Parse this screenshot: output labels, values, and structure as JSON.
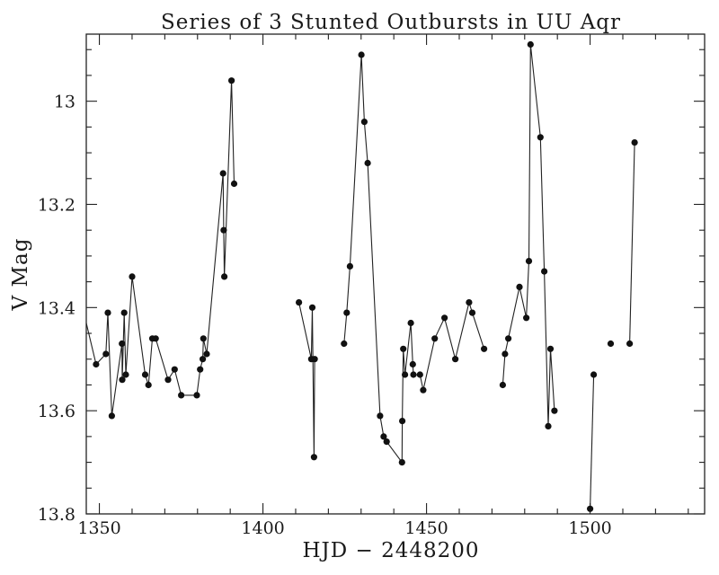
{
  "chart_data": {
    "type": "line",
    "title": "Series of 3 Stunted Outbursts in UU Aqr",
    "xlabel": "HJD − 2448200",
    "ylabel": "V Mag",
    "xlim": [
      1346,
      1535
    ],
    "ylim": [
      13.8,
      12.87
    ],
    "y_inverted": true,
    "xticks": [
      1350,
      1400,
      1450,
      1500
    ],
    "yticks": [
      13,
      13.2,
      13.4,
      13.6,
      13.8
    ],
    "xtick_labels": [
      "1350",
      "1400",
      "1450",
      "1500"
    ],
    "ytick_labels": [
      "13",
      "13.2",
      "13.4",
      "13.6",
      "13.8"
    ],
    "grid": false,
    "legend": "none",
    "line_enters_from_left": true,
    "series": [
      {
        "segments": [
          [
            [
              1349,
              13.51
            ],
            [
              1352,
              13.49
            ],
            [
              1352.6,
              13.41
            ],
            [
              1353.8,
              13.61
            ],
            [
              1356.9,
              13.47
            ],
            [
              1357,
              13.54
            ],
            [
              1357.6,
              13.41
            ],
            [
              1358.1,
              13.53
            ],
            [
              1360,
              13.34
            ],
            [
              1364,
              13.53
            ],
            [
              1365,
              13.55
            ],
            [
              1366.2,
              13.46
            ],
            [
              1367.2,
              13.46
            ],
            [
              1371,
              13.54
            ],
            [
              1373,
              13.52
            ],
            [
              1375,
              13.57
            ],
            [
              1379.8,
              13.57
            ],
            [
              1380.8,
              13.52
            ],
            [
              1381.6,
              13.5
            ],
            [
              1381.8,
              13.46
            ],
            [
              1382.8,
              13.49
            ],
            [
              1387.8,
              13.14
            ],
            [
              1388,
              13.25
            ],
            [
              1388.2,
              13.34
            ],
            [
              1390.4,
              12.96
            ],
            [
              1391.2,
              13.16
            ]
          ],
          [
            [
              1411,
              13.39
            ],
            [
              1414.8,
              13.5
            ],
            [
              1415.1,
              13.4
            ],
            [
              1415.6,
              13.69
            ],
            [
              1415.8,
              13.5
            ]
          ],
          [
            [
              1424.8,
              13.47
            ],
            [
              1425.6,
              13.41
            ],
            [
              1426.6,
              13.32
            ],
            [
              1430.1,
              12.91
            ],
            [
              1431,
              13.04
            ],
            [
              1432,
              13.12
            ],
            [
              1435.8,
              13.61
            ],
            [
              1436.9,
              13.65
            ],
            [
              1437.8,
              13.66
            ],
            [
              1442.5,
              13.7
            ],
            [
              1442.6,
              13.62
            ],
            [
              1442.9,
              13.48
            ],
            [
              1443.4,
              13.53
            ],
            [
              1445.2,
              13.43
            ],
            [
              1445.8,
              13.51
            ],
            [
              1446,
              13.53
            ],
            [
              1448,
              13.53
            ],
            [
              1449,
              13.56
            ],
            [
              1452.5,
              13.46
            ],
            [
              1455.5,
              13.42
            ],
            [
              1458.8,
              13.5
            ],
            [
              1463,
              13.39
            ],
            [
              1464,
              13.41
            ],
            [
              1467.6,
              13.48
            ]
          ],
          [
            [
              1473.3,
              13.55
            ],
            [
              1474,
              13.49
            ],
            [
              1475,
              13.46
            ],
            [
              1478.4,
              13.36
            ],
            [
              1480.5,
              13.42
            ],
            [
              1481.3,
              13.31
            ],
            [
              1481.8,
              12.89
            ],
            [
              1484.8,
              13.07
            ],
            [
              1486,
              13.33
            ],
            [
              1487.2,
              13.63
            ],
            [
              1487.9,
              13.48
            ],
            [
              1489.1,
              13.6
            ]
          ],
          [
            [
              1500,
              13.79
            ],
            [
              1501.1,
              13.53
            ]
          ],
          [
            [
              1506.3,
              13.47
            ]
          ],
          [
            [
              1512.1,
              13.47
            ],
            [
              1513.6,
              13.08
            ]
          ]
        ]
      }
    ]
  }
}
